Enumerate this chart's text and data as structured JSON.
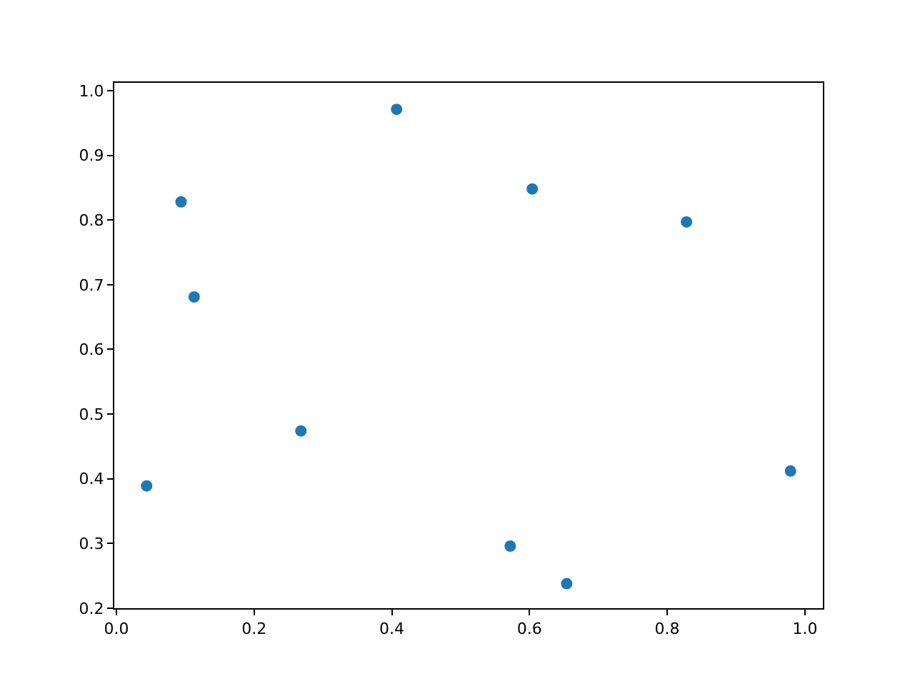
{
  "chart_data": {
    "type": "scatter",
    "marker": "circle",
    "legend": false,
    "x": [
      0.044,
      0.094,
      0.113,
      0.268,
      0.407,
      0.604,
      0.572,
      0.654,
      0.828,
      0.979
    ],
    "series": [
      {
        "color": "#1f77b4",
        "values": [
          0.389,
          0.828,
          0.681,
          0.474,
          0.971,
          0.848,
          0.296,
          0.238,
          0.797,
          0.412
        ]
      }
    ],
    "xlim": [
      -0.003,
      1.026
    ],
    "ylim": [
      0.2,
      1.012
    ],
    "xticks": [
      {
        "value": 0,
        "label": "0.0"
      },
      0.2,
      0.4,
      0.6,
      0.8,
      {
        "value": 1,
        "label": "1.0"
      }
    ],
    "yticks": [
      0.2,
      0.3,
      0.4,
      0.5,
      0.6,
      0.7,
      0.8,
      0.9,
      {
        "value": 1,
        "label": "1.0"
      }
    ]
  }
}
